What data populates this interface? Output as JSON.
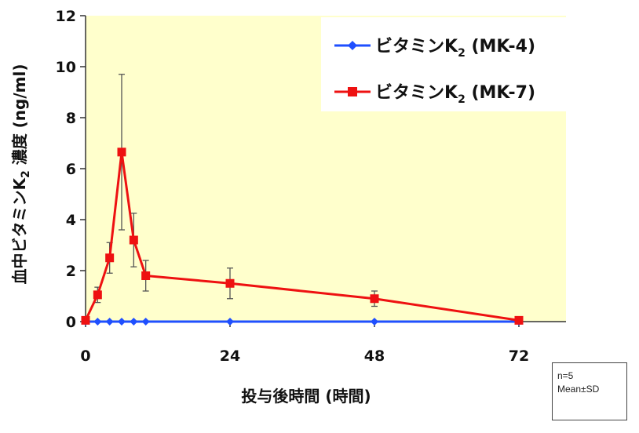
{
  "chart_data": {
    "type": "line",
    "title": "",
    "xlabel": "投与後時間 (時間)",
    "ylabel": "血中ビタミンK₂ 濃度 (ng/ml)",
    "xlim": [
      0,
      80
    ],
    "ylim": [
      0,
      12
    ],
    "x_ticks": [
      "0",
      "24",
      "48",
      "72"
    ],
    "x_tick_values": [
      0,
      24,
      48,
      72
    ],
    "y_ticks": [
      "0",
      "2",
      "4",
      "6",
      "8",
      "10",
      "12"
    ],
    "y_tick_values": [
      0,
      2,
      4,
      6,
      8,
      10,
      12
    ],
    "grid": false,
    "legend_position": "top-right",
    "plot_background": "#ffffcc",
    "series": [
      {
        "name": "ビタミンK₂ (MK-4)",
        "color": "#1f4fff",
        "marker": "diamond",
        "x": [
          0,
          2,
          4,
          6,
          8,
          10,
          24,
          48,
          72
        ],
        "y": [
          0,
          0,
          0,
          0,
          0,
          0,
          0,
          0,
          0
        ],
        "sd": [
          0,
          0,
          0,
          0,
          0,
          0,
          0,
          0,
          0
        ]
      },
      {
        "name": "ビタミンK₂ (MK-7)",
        "color": "#ee1111",
        "marker": "square",
        "x": [
          0,
          2,
          4,
          6,
          8,
          10,
          24,
          48,
          72
        ],
        "y": [
          0.05,
          1.05,
          2.5,
          6.65,
          3.2,
          1.8,
          1.5,
          0.9,
          0.05
        ],
        "sd": [
          0,
          0.3,
          0.6,
          3.05,
          1.05,
          0.6,
          0.6,
          0.3,
          0
        ]
      }
    ],
    "legend": [
      {
        "base": "ビタミンK",
        "sub": "2",
        "suffix": " (MK-4)"
      },
      {
        "base": "ビタミンK",
        "sub": "2",
        "suffix": " (MK-7)"
      }
    ],
    "ylabel_parts": {
      "base": "血中ビタミンK",
      "sub": "2",
      "suffix": " 濃度 (ng/ml)"
    },
    "note": [
      "n=5",
      "Mean±SD"
    ]
  }
}
